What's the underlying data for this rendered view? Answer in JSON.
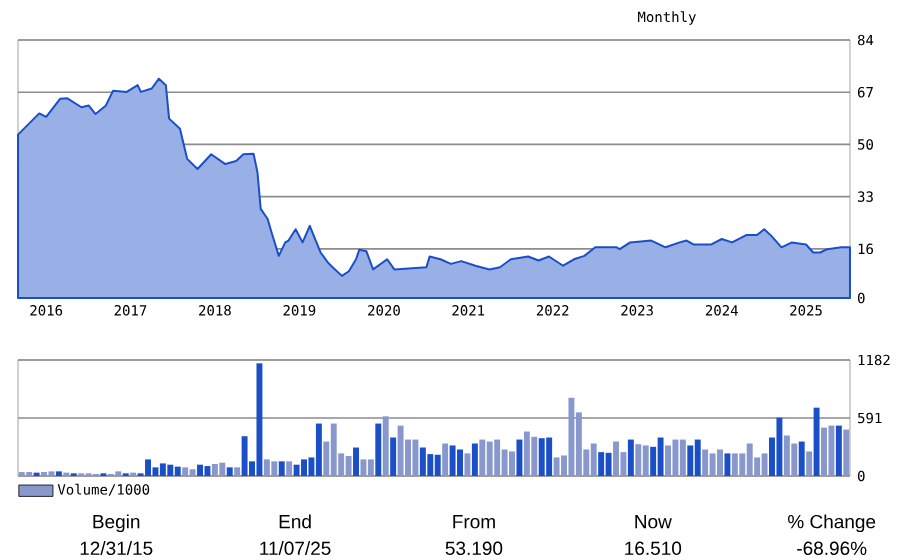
{
  "chart_data": [
    {
      "type": "area",
      "x": [
        "2015-12-31",
        "2016-04-01",
        "2016-05-01",
        "2016-07-01",
        "2016-08-01",
        "2016-10-01",
        "2016-11-01",
        "2016-12-01",
        "2017-01-15",
        "2017-02-15",
        "2017-04-15",
        "2017-06-01",
        "2017-06-15",
        "2017-08-01",
        "2017-09-01",
        "2017-10-01",
        "2017-10-15",
        "2017-12-01",
        "2018-01-01",
        "2018-02-15",
        "2018-04-15",
        "2018-06-15",
        "2018-08-01",
        "2018-09-01",
        "2018-10-15",
        "2018-11-01",
        "2018-11-15",
        "2018-12-15",
        "2019-01-01",
        "2019-02-01",
        "2019-03-01",
        "2019-03-15",
        "2019-04-15",
        "2019-05-15",
        "2019-06-15",
        "2019-08-01",
        "2019-09-01",
        "2019-09-15",
        "2019-11-01",
        "2019-12-01",
        "2020-01-01",
        "2020-01-15",
        "2020-02-15",
        "2020-03-15",
        "2020-05-15",
        "2020-06-15",
        "2020-11-01",
        "2020-11-15",
        "2021-01-01",
        "2021-02-15",
        "2021-04-01",
        "2021-06-01",
        "2021-08-01",
        "2021-09-15",
        "2021-11-01",
        "2022-01-15",
        "2022-03-01",
        "2022-04-15",
        "2022-06-15",
        "2022-08-01",
        "2022-09-15",
        "2022-11-01",
        "2023-02-01",
        "2023-02-15",
        "2023-04-01",
        "2023-07-01",
        "2023-09-01",
        "2023-11-01",
        "2023-12-01",
        "2024-01-01",
        "2024-03-15",
        "2024-05-01",
        "2024-06-15",
        "2024-08-15",
        "2024-10-01",
        "2024-11-01",
        "2024-12-01",
        "2025-01-15",
        "2025-03-01",
        "2025-05-01",
        "2025-06-01",
        "2025-07-01",
        "2025-08-01",
        "2025-10-01",
        "2025-11-07"
      ],
      "series": [
        {
          "color": "#1a4fc8",
          "values": [
            53.2,
            60.1,
            59,
            64.9,
            65,
            62.1,
            62.7,
            59.9,
            62.7,
            67.5,
            67.1,
            69.3,
            67.1,
            68.2,
            71.4,
            69.3,
            58.4,
            55.1,
            45.3,
            42.0,
            46.8,
            43.6,
            44.6,
            46.8,
            47.0,
            40.9,
            29.0,
            25.7,
            21.3,
            13.7,
            18.1,
            18.7,
            22.4,
            18.1,
            23.5,
            14.8,
            11.6,
            10.5,
            7.2,
            8.7,
            12.6,
            15.7,
            15.2,
            9.3,
            12.6,
            9.3,
            10.0,
            13.5,
            12.6,
            11.1,
            12,
            10.5,
            9.3,
            10,
            12.6,
            13.5,
            12.2,
            13.5,
            10.5,
            12.6,
            13.7,
            16.5,
            16.5,
            15.9,
            18.1,
            18.7,
            16.5,
            18.1,
            18.7,
            17.4,
            17.4,
            19.2,
            18.1,
            20.5,
            20.5,
            22.4,
            20.3,
            16.5,
            18.1,
            17.4,
            14.8,
            14.8,
            15.9,
            16.5,
            16.5
          ]
        }
      ],
      "xlim": [
        "2015-12-31",
        "2025-11-07"
      ],
      "xticks": [
        {
          "value": "2016-05-01",
          "label": "2016"
        },
        {
          "value": "2017-05-01",
          "label": "2017"
        },
        {
          "value": "2018-05-01",
          "label": "2018"
        },
        {
          "value": "2019-05-01",
          "label": "2019"
        },
        {
          "value": "2020-05-01",
          "label": "2020"
        },
        {
          "value": "2021-05-01",
          "label": "2021"
        },
        {
          "value": "2022-05-01",
          "label": "2022"
        },
        {
          "value": "2023-05-01",
          "label": "2023"
        },
        {
          "value": "2024-05-01",
          "label": "2024"
        },
        {
          "value": "2025-05-01",
          "label": "2025"
        }
      ],
      "ylim": [
        0,
        84
      ],
      "yticks": [
        0,
        16,
        33,
        50,
        67,
        84
      ],
      "grid": "y",
      "annotations": [
        "Monthly"
      ]
    },
    {
      "type": "bar",
      "categories": [
        null,
        null,
        null,
        null,
        null,
        null,
        null,
        null,
        null,
        null,
        null,
        null,
        null,
        null,
        null,
        null,
        null,
        null,
        null,
        null,
        null,
        null,
        null,
        null,
        null,
        null,
        null,
        null,
        null,
        null,
        null,
        null,
        null,
        null,
        null,
        null,
        null,
        null,
        null,
        null,
        null,
        null,
        null,
        null,
        null,
        null,
        null,
        null,
        null,
        null,
        null,
        null,
        null,
        null,
        null,
        null,
        null,
        null,
        null,
        null,
        null,
        null,
        null,
        null,
        null,
        null,
        null,
        null,
        null,
        null,
        null,
        null,
        null,
        null,
        null,
        null,
        null,
        null,
        null,
        null,
        null,
        null,
        null,
        null,
        null,
        null,
        null,
        null,
        null,
        null,
        null,
        null,
        null,
        null,
        null,
        null,
        null,
        null,
        null,
        null,
        null,
        null,
        null,
        null,
        null,
        null,
        null,
        null,
        null,
        null,
        null,
        null
      ],
      "series": [
        {
          "name": "Volume/1000",
          "color": "#8898cc",
          "values": [
            40,
            40,
            34,
            40,
            47,
            47,
            34,
            27,
            27,
            27,
            20,
            27,
            20,
            47,
            27,
            34,
            27,
            169,
            88,
            128,
            115,
            95,
            88,
            68,
            115,
            101,
            122,
            135,
            88,
            88,
            405,
            149,
            1148,
            169,
            149,
            149,
            149,
            115,
            169,
            189,
            534,
            351,
            534,
            230,
            203,
            290,
            169,
            169,
            534,
            608,
            392,
            513,
            371,
            371,
            290,
            223,
            216,
            331,
            311,
            270,
            230,
            331,
            371,
            351,
            371,
            270,
            250,
            371,
            453,
            399,
            385,
            392,
            189,
            209,
            797,
            648,
            270,
            331,
            243,
            236,
            351,
            243,
            371,
            324,
            311,
            297,
            392,
            311,
            371,
            371,
            311,
            371,
            270,
            230,
            270,
            230,
            230,
            230,
            331,
            189,
            230,
            392,
            594,
            412,
            331,
            351,
            250,
            696,
            493,
            513,
            513,
            473
          ],
          "colors": [
            "#8898cc",
            "#8898cc",
            "#1a4fc8",
            "#8898cc",
            "#8898cc",
            "#1a4fc8",
            "#8898cc",
            "#1a4fc8",
            "#8898cc",
            "#8898cc",
            "#8898cc",
            "#1a4fc8",
            "#8898cc",
            "#8898cc",
            "#1a4fc8",
            "#8898cc",
            "#1a4fc8",
            "#1a4fc8",
            "#1a4fc8",
            "#1a4fc8",
            "#1a4fc8",
            "#1a4fc8",
            "#8898cc",
            "#8898cc",
            "#1a4fc8",
            "#1a4fc8",
            "#8898cc",
            "#8898cc",
            "#1a4fc8",
            "#8898cc",
            "#1a4fc8",
            "#1a4fc8",
            "#1a4fc8",
            "#8898cc",
            "#8898cc",
            "#1a4fc8",
            "#8898cc",
            "#1a4fc8",
            "#1a4fc8",
            "#1a4fc8",
            "#1a4fc8",
            "#8898cc",
            "#8898cc",
            "#8898cc",
            "#8898cc",
            "#1a4fc8",
            "#8898cc",
            "#8898cc",
            "#1a4fc8",
            "#8898cc",
            "#1a4fc8",
            "#8898cc",
            "#8898cc",
            "#8898cc",
            "#1a4fc8",
            "#1a4fc8",
            "#1a4fc8",
            "#8898cc",
            "#1a4fc8",
            "#1a4fc8",
            "#8898cc",
            "#1a4fc8",
            "#8898cc",
            "#8898cc",
            "#8898cc",
            "#8898cc",
            "#8898cc",
            "#1a4fc8",
            "#8898cc",
            "#8898cc",
            "#1a4fc8",
            "#1a4fc8",
            "#8898cc",
            "#8898cc",
            "#8898cc",
            "#8898cc",
            "#8898cc",
            "#8898cc",
            "#1a4fc8",
            "#1a4fc8",
            "#8898cc",
            "#8898cc",
            "#1a4fc8",
            "#8898cc",
            "#8898cc",
            "#1a4fc8",
            "#1a4fc8",
            "#8898cc",
            "#8898cc",
            "#8898cc",
            "#1a4fc8",
            "#1a4fc8",
            "#8898cc",
            "#8898cc",
            "#8898cc",
            "#1a4fc8",
            "#8898cc",
            "#8898cc",
            "#8898cc",
            "#8898cc",
            "#8898cc",
            "#1a4fc8",
            "#1a4fc8",
            "#8898cc",
            "#8898cc",
            "#1a4fc8",
            "#8898cc",
            "#1a4fc8",
            "#8898cc",
            "#8898cc",
            "#1a4fc8",
            "#8898cc"
          ]
        }
      ],
      "ylim": [
        0,
        1182
      ],
      "yticks": [
        0,
        591,
        1182
      ],
      "grid": "y",
      "legend": "bottom left",
      "annotations": [
        "Begin",
        "End",
        "From",
        "Now",
        "% Change",
        "12/31/15",
        "11/07/25",
        "53.190",
        "16.510",
        "-68.96%"
      ]
    }
  ]
}
